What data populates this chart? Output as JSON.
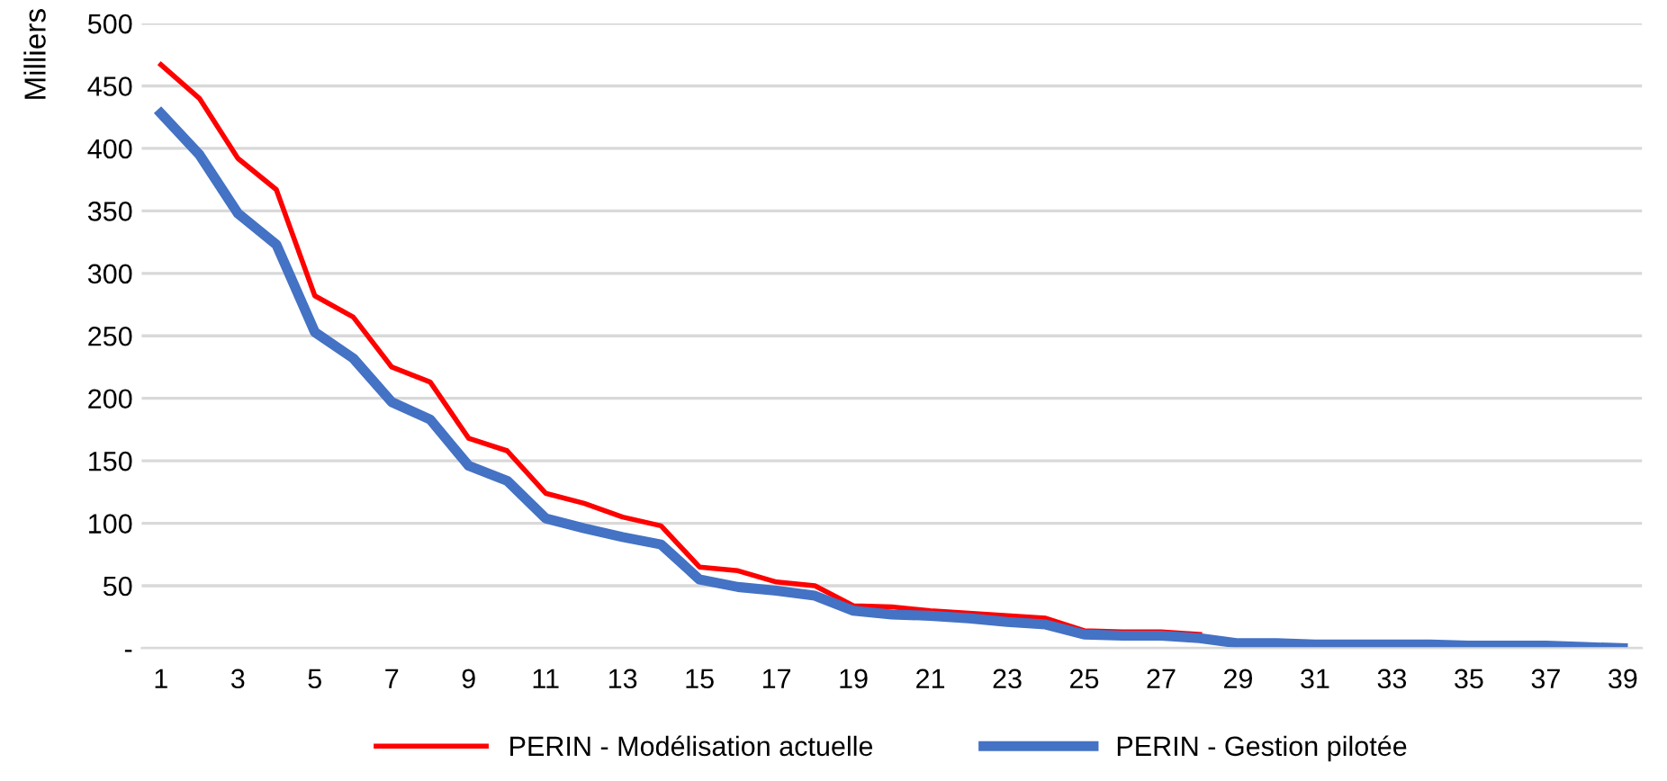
{
  "chart_data": {
    "type": "line",
    "ylabel": "Milliers",
    "categories": [
      "1",
      null,
      "3",
      null,
      "5",
      null,
      "7",
      null,
      "9",
      null,
      "11",
      null,
      "13",
      null,
      "15",
      null,
      "17",
      null,
      "19",
      null,
      "21",
      null,
      "23",
      null,
      "25",
      null,
      "27",
      null,
      "29",
      null,
      "31",
      null,
      "33",
      null,
      "35",
      null,
      "37",
      null,
      "39"
    ],
    "series": [
      {
        "name": "PERIN - Modélisation actuelle",
        "color": "#ff0000",
        "values": [
          467,
          440,
          392,
          367,
          282,
          265,
          225,
          213,
          168,
          158,
          124,
          116,
          105,
          98,
          65,
          62,
          53,
          50,
          34,
          33,
          30,
          28,
          26,
          24,
          14,
          13,
          13,
          11,
          null,
          null,
          null,
          null,
          null,
          null,
          null,
          null,
          null,
          null,
          null
        ]
      },
      {
        "name": "PERIN - Gestion pilotée",
        "color": "#4472c4",
        "values": [
          428,
          395,
          348,
          323,
          253,
          232,
          197,
          183,
          146,
          134,
          104,
          96,
          89,
          83,
          55,
          49,
          46,
          42,
          30,
          27,
          26,
          24,
          21,
          19,
          11,
          10,
          10,
          8,
          4,
          4,
          3,
          3,
          3,
          3,
          2,
          2,
          2,
          1,
          0
        ]
      }
    ],
    "ylim": [
      0,
      500
    ],
    "yticks": [
      {
        "value": 0,
        "label": "-"
      },
      50,
      100,
      150,
      200,
      250,
      300,
      350,
      400,
      450,
      500
    ],
    "grid": "y",
    "legend": "bottom",
    "marker": "none",
    "line_style": "solid"
  }
}
